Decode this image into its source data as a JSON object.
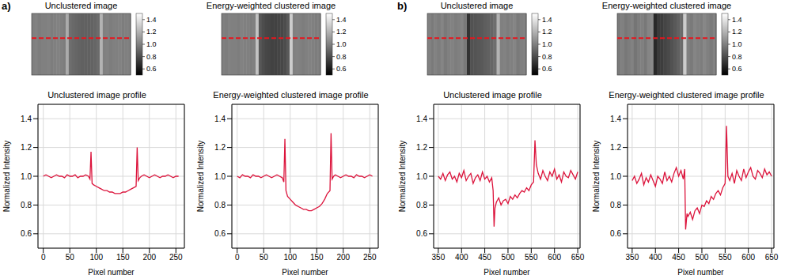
{
  "chart_data": [
    {
      "type": "image",
      "panel": "a)",
      "title": "Unclustered image",
      "values": [
        1.0,
        1.01,
        0.99,
        1.0,
        1.0,
        1.01,
        0.99,
        1.0,
        1.01,
        1.0,
        0.99,
        1.17,
        0.93,
        0.91,
        0.9,
        0.89,
        0.88,
        0.88,
        0.88,
        0.89,
        0.9,
        0.92,
        1.2,
        1.0,
        1.01,
        0.99,
        1.0,
        1.0,
        1.01,
        0.99,
        1.0,
        1.0
      ],
      "colorbar_range": [
        0.5,
        1.5
      ],
      "colorbar_ticks": [
        0.6,
        0.8,
        {
          "value": 1,
          "label": "1.0"
        },
        1.2,
        1.4
      ]
    },
    {
      "type": "image",
      "panel": "a)",
      "title": "Energy-weighted clustered image",
      "values": [
        1.0,
        0.99,
        1.01,
        1.0,
        1.0,
        0.99,
        1.01,
        1.0,
        1.0,
        0.99,
        1.0,
        1.26,
        0.84,
        0.8,
        0.78,
        0.77,
        0.76,
        0.76,
        0.77,
        0.78,
        0.8,
        0.85,
        1.3,
        1.0,
        1.01,
        1.0,
        0.99,
        1.0,
        1.01,
        1.0,
        0.99,
        1.0
      ],
      "colorbar_range": [
        0.5,
        1.5
      ],
      "colorbar_ticks": [
        0.6,
        0.8,
        {
          "value": 1,
          "label": "1.0"
        },
        1.2,
        1.4
      ]
    },
    {
      "type": "line",
      "panel": "a)",
      "title": "Unclustered image profile",
      "xlabel": "Pixel number",
      "ylabel": "Normalized Intensity",
      "color": "#dc143c",
      "grid": true,
      "xlim": [
        -10,
        266
      ],
      "ylim": [
        0.5,
        1.5
      ],
      "xticks": [
        0,
        50,
        100,
        150,
        200,
        250
      ],
      "yticks": [
        0.6,
        0.8,
        {
          "value": 1,
          "label": "1.0"
        },
        1.2,
        1.4
      ],
      "x": [
        0,
        5,
        10,
        15,
        20,
        25,
        30,
        35,
        40,
        45,
        50,
        55,
        60,
        65,
        70,
        75,
        80,
        85,
        88,
        90,
        92,
        95,
        100,
        105,
        110,
        115,
        120,
        125,
        130,
        135,
        140,
        145,
        150,
        155,
        160,
        165,
        170,
        175,
        177,
        179,
        182,
        185,
        190,
        195,
        200,
        205,
        210,
        215,
        220,
        225,
        230,
        235,
        240,
        245,
        250,
        255
      ],
      "values": [
        1.0,
        1.01,
        1.0,
        0.99,
        1.0,
        1.01,
        1.0,
        1.0,
        0.99,
        1.01,
        1.0,
        1.0,
        1.01,
        0.99,
        1.0,
        1.0,
        1.01,
        1.0,
        0.98,
        1.17,
        0.95,
        0.94,
        0.93,
        0.92,
        0.91,
        0.9,
        0.9,
        0.89,
        0.89,
        0.88,
        0.88,
        0.88,
        0.89,
        0.89,
        0.9,
        0.91,
        0.92,
        0.93,
        1.2,
        0.97,
        0.99,
        1.0,
        1.01,
        1.0,
        0.99,
        1.0,
        1.01,
        1.0,
        0.99,
        1.0,
        1.0,
        1.01,
        1.0,
        0.99,
        1.0,
        1.0
      ]
    },
    {
      "type": "line",
      "panel": "a)",
      "title": "Energy-weighted clustered image profile",
      "xlabel": "Pixel number",
      "ylabel": "Normalized Intensity",
      "color": "#dc143c",
      "grid": true,
      "xlim": [
        -10,
        266
      ],
      "ylim": [
        0.5,
        1.5
      ],
      "xticks": [
        0,
        50,
        100,
        150,
        200,
        250
      ],
      "yticks": [
        0.6,
        0.8,
        {
          "value": 1,
          "label": "1.0"
        },
        1.2,
        1.4
      ],
      "x": [
        0,
        5,
        10,
        15,
        20,
        25,
        30,
        35,
        40,
        45,
        50,
        55,
        60,
        65,
        70,
        75,
        80,
        85,
        88,
        90,
        92,
        95,
        100,
        105,
        110,
        115,
        120,
        125,
        130,
        135,
        140,
        145,
        150,
        155,
        160,
        165,
        170,
        175,
        177,
        179,
        182,
        185,
        190,
        195,
        200,
        205,
        210,
        215,
        220,
        225,
        230,
        235,
        240,
        245,
        250,
        255
      ],
      "values": [
        1.0,
        0.99,
        1.01,
        1.0,
        1.0,
        0.99,
        1.01,
        1.0,
        1.0,
        0.99,
        1.0,
        1.01,
        1.0,
        0.99,
        1.0,
        1.01,
        1.0,
        0.99,
        0.96,
        1.26,
        0.9,
        0.86,
        0.84,
        0.82,
        0.8,
        0.79,
        0.78,
        0.77,
        0.77,
        0.76,
        0.76,
        0.77,
        0.78,
        0.79,
        0.81,
        0.84,
        0.88,
        0.9,
        1.3,
        0.98,
        1.0,
        1.01,
        1.0,
        0.99,
        1.0,
        1.01,
        1.0,
        1.0,
        0.99,
        1.01,
        1.0,
        1.0,
        0.99,
        1.0,
        1.01,
        1.0
      ]
    },
    {
      "type": "image",
      "panel": "b)",
      "title": "Unclustered image",
      "values": [
        1.0,
        0.98,
        1.01,
        0.99,
        1.02,
        0.98,
        1.0,
        1.01,
        0.99,
        1.0,
        1.02,
        0.98,
        0.7,
        0.82,
        0.83,
        0.84,
        0.85,
        0.87,
        0.88,
        0.9,
        0.93,
        1.2,
        1.0,
        1.01,
        0.99,
        1.0,
        1.02,
        0.98,
        1.0,
        1.01
      ],
      "colorbar_range": [
        0.5,
        1.5
      ],
      "colorbar_ticks": [
        0.6,
        0.8,
        {
          "value": 1,
          "label": "1.0"
        },
        1.2,
        1.4
      ]
    },
    {
      "type": "image",
      "panel": "b)",
      "title": "Energy-weighted clustered image",
      "values": [
        0.98,
        1.0,
        0.97,
        0.99,
        1.01,
        0.96,
        0.99,
        1.0,
        0.97,
        1.02,
        1.04,
        0.66,
        0.73,
        0.74,
        0.77,
        0.79,
        0.82,
        0.85,
        0.88,
        0.92,
        1.3,
        1.0,
        0.98,
        1.02,
        1.0,
        0.99,
        1.03,
        1.0,
        0.98,
        1.01
      ],
      "colorbar_range": [
        0.5,
        1.5
      ],
      "colorbar_ticks": [
        0.6,
        0.8,
        {
          "value": 1,
          "label": "1.0"
        },
        1.2,
        1.4
      ]
    },
    {
      "type": "line",
      "panel": "b)",
      "title": "Unclustered image profile",
      "xlabel": "Pixel number",
      "ylabel": "Normalized Intensity",
      "color": "#dc143c",
      "grid": true,
      "xlim": [
        340,
        655
      ],
      "ylim": [
        0.5,
        1.5
      ],
      "xticks": [
        350,
        400,
        450,
        500,
        550,
        600,
        650
      ],
      "yticks": [
        0.6,
        0.8,
        {
          "value": 1,
          "label": "1.0"
        },
        1.2,
        1.4
      ],
      "x": [
        350,
        355,
        360,
        365,
        370,
        375,
        380,
        385,
        390,
        395,
        400,
        405,
        410,
        415,
        420,
        425,
        430,
        435,
        440,
        445,
        450,
        455,
        460,
        465,
        468,
        470,
        472,
        475,
        480,
        485,
        490,
        495,
        500,
        505,
        510,
        515,
        520,
        525,
        530,
        535,
        540,
        545,
        550,
        555,
        558,
        561,
        565,
        570,
        575,
        580,
        585,
        590,
        595,
        600,
        605,
        610,
        615,
        620,
        625,
        630,
        635,
        640,
        645,
        650
      ],
      "values": [
        1.0,
        0.98,
        1.02,
        0.97,
        1.01,
        1.03,
        0.98,
        1.0,
        0.96,
        1.02,
        0.99,
        1.04,
        0.97,
        1.0,
        1.02,
        0.95,
        0.99,
        1.01,
        0.97,
        1.03,
        0.98,
        1.0,
        0.96,
        0.99,
        0.9,
        0.65,
        0.78,
        0.82,
        0.85,
        0.8,
        0.83,
        0.84,
        0.81,
        0.86,
        0.84,
        0.87,
        0.85,
        0.88,
        0.9,
        0.89,
        0.92,
        0.9,
        0.94,
        0.96,
        1.25,
        1.08,
        1.02,
        0.98,
        1.04,
        1.0,
        0.97,
        1.03,
        1.0,
        1.05,
        0.98,
        1.01,
        0.96,
        1.03,
        1.0,
        0.99,
        1.04,
        1.01,
        0.98,
        1.03
      ]
    },
    {
      "type": "line",
      "panel": "b)",
      "title": "Energy-weighted clustered image profile",
      "xlabel": "Pixel number",
      "ylabel": "Normalized Intensity",
      "color": "#dc143c",
      "grid": true,
      "xlim": [
        340,
        655
      ],
      "ylim": [
        0.5,
        1.5
      ],
      "xticks": [
        350,
        400,
        450,
        500,
        550,
        600,
        650
      ],
      "yticks": [
        0.6,
        0.8,
        {
          "value": 1,
          "label": "1.0"
        },
        1.2,
        1.4
      ],
      "x": [
        350,
        355,
        360,
        365,
        370,
        375,
        380,
        385,
        390,
        395,
        400,
        405,
        410,
        415,
        420,
        425,
        430,
        435,
        440,
        445,
        450,
        455,
        460,
        463,
        465,
        468,
        470,
        475,
        480,
        485,
        490,
        495,
        500,
        505,
        510,
        515,
        520,
        525,
        530,
        535,
        540,
        545,
        550,
        553,
        556,
        560,
        565,
        570,
        575,
        580,
        585,
        590,
        595,
        600,
        605,
        610,
        615,
        620,
        625,
        630,
        635,
        640,
        645,
        650
      ],
      "values": [
        0.97,
        1.0,
        0.95,
        0.98,
        1.02,
        0.94,
        0.99,
        0.96,
        1.01,
        0.97,
        0.93,
        1.0,
        0.98,
        0.95,
        1.03,
        0.97,
        1.0,
        0.96,
        1.02,
        1.06,
        1.0,
        1.04,
        0.98,
        1.05,
        0.63,
        0.74,
        0.72,
        0.75,
        0.7,
        0.76,
        0.78,
        0.74,
        0.8,
        0.79,
        0.83,
        0.81,
        0.86,
        0.84,
        0.88,
        0.9,
        0.87,
        0.92,
        0.95,
        1.35,
        1.0,
        0.97,
        1.02,
        0.95,
        1.04,
        1.0,
        0.97,
        1.05,
        0.99,
        1.03,
        1.06,
        1.0,
        0.98,
        1.04,
        1.02,
        0.99,
        1.05,
        1.01,
        1.03,
        1.0
      ]
    }
  ]
}
